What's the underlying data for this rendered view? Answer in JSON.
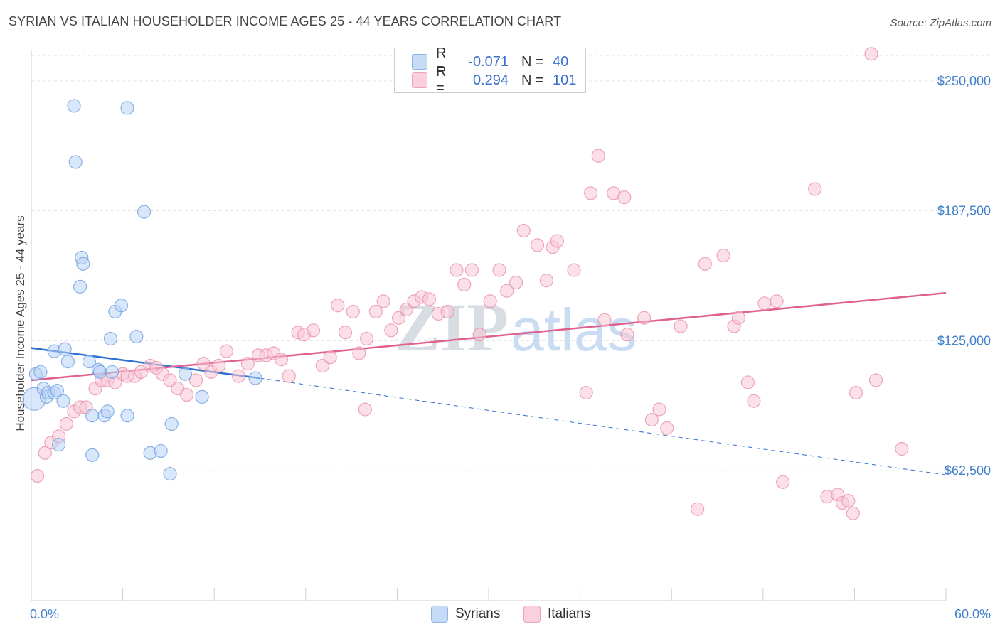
{
  "title": "SYRIAN VS ITALIAN HOUSEHOLDER INCOME AGES 25 - 44 YEARS CORRELATION CHART",
  "source": "Source: ZipAtlas.com",
  "watermark": {
    "zip": "ZIP",
    "atlas": "atlas"
  },
  "legend": {
    "rows": [
      {
        "r_label": "R =",
        "r_value": "-0.071",
        "n_label": "N =",
        "n_value": "40",
        "color": "#a9c8f0"
      },
      {
        "r_label": "R =",
        "r_value": "0.294",
        "n_label": "N =",
        "n_value": "101",
        "color": "#f5b8cc"
      }
    ]
  },
  "bottom_legend": [
    {
      "label": "Syrians",
      "color": "#b9d3f5"
    },
    {
      "label": "Italians",
      "color": "#f8c6d6"
    }
  ],
  "chart_data": {
    "type": "scatter",
    "title": "SYRIAN VS ITALIAN HOUSEHOLDER INCOME AGES 25 - 44 YEARS CORRELATION CHART",
    "xlabel": "",
    "ylabel": "Householder Income Ages 25 - 44 years",
    "xlim": [
      0,
      60
    ],
    "ylim": [
      0,
      265000
    ],
    "x_tick_labels": [
      "0.0%",
      "60.0%"
    ],
    "y_ticks": [
      62500,
      125000,
      187500,
      250000
    ],
    "y_tick_labels": [
      "$62,500",
      "$125,000",
      "$187,500",
      "$250,000"
    ],
    "grid": true,
    "colors": {
      "syrians": "#5b95dc",
      "italians": "#e8789e",
      "syrians_line": "#2f6fd0",
      "italians_line": "#e0608e"
    },
    "series": [
      {
        "name": "Syrians",
        "points": [
          [
            0.2,
            97000
          ],
          [
            0.3,
            109000
          ],
          [
            0.6,
            110000
          ],
          [
            0.8,
            102000
          ],
          [
            1.0,
            98000
          ],
          [
            1.1,
            100000
          ],
          [
            1.5,
            120000
          ],
          [
            1.5,
            100000
          ],
          [
            1.7,
            101000
          ],
          [
            1.8,
            75000
          ],
          [
            2.1,
            96000
          ],
          [
            2.2,
            121000
          ],
          [
            2.4,
            115000
          ],
          [
            2.8,
            238000
          ],
          [
            2.9,
            211000
          ],
          [
            3.2,
            151000
          ],
          [
            3.3,
            165000
          ],
          [
            3.4,
            162000
          ],
          [
            3.8,
            115000
          ],
          [
            4.0,
            89000
          ],
          [
            4.0,
            70000
          ],
          [
            4.4,
            111000
          ],
          [
            4.5,
            110000
          ],
          [
            4.8,
            89000
          ],
          [
            5.0,
            91000
          ],
          [
            5.2,
            126000
          ],
          [
            5.3,
            110000
          ],
          [
            5.5,
            139000
          ],
          [
            5.9,
            142000
          ],
          [
            6.3,
            237000
          ],
          [
            6.3,
            89000
          ],
          [
            6.9,
            127000
          ],
          [
            7.4,
            187000
          ],
          [
            7.8,
            71000
          ],
          [
            8.5,
            72000
          ],
          [
            9.1,
            61000
          ],
          [
            9.2,
            85000
          ],
          [
            10.1,
            109000
          ],
          [
            11.2,
            98000
          ],
          [
            14.7,
            107000
          ]
        ],
        "trend": {
          "x": [
            0,
            15,
            60
          ],
          "y": [
            121500,
            107000,
            60500
          ],
          "solid_until": 15
        }
      },
      {
        "name": "Italians",
        "points": [
          [
            0.4,
            60000
          ],
          [
            0.9,
            71000
          ],
          [
            1.3,
            76000
          ],
          [
            1.8,
            79000
          ],
          [
            2.3,
            85000
          ],
          [
            2.8,
            91000
          ],
          [
            3.2,
            93000
          ],
          [
            3.6,
            93000
          ],
          [
            4.2,
            102000
          ],
          [
            4.6,
            106000
          ],
          [
            5.0,
            106000
          ],
          [
            5.5,
            105000
          ],
          [
            6.0,
            109000
          ],
          [
            6.3,
            108000
          ],
          [
            6.8,
            108000
          ],
          [
            7.2,
            110000
          ],
          [
            7.8,
            113000
          ],
          [
            8.2,
            112000
          ],
          [
            8.6,
            109000
          ],
          [
            9.1,
            106000
          ],
          [
            9.6,
            102000
          ],
          [
            10.2,
            99000
          ],
          [
            10.8,
            106000
          ],
          [
            11.3,
            114000
          ],
          [
            11.8,
            110000
          ],
          [
            12.3,
            113000
          ],
          [
            12.8,
            120000
          ],
          [
            13.6,
            108000
          ],
          [
            14.2,
            114000
          ],
          [
            14.9,
            118000
          ],
          [
            15.4,
            118000
          ],
          [
            15.9,
            119000
          ],
          [
            16.4,
            116000
          ],
          [
            16.9,
            108000
          ],
          [
            17.5,
            129000
          ],
          [
            17.9,
            128000
          ],
          [
            18.5,
            130000
          ],
          [
            19.1,
            113000
          ],
          [
            19.6,
            117000
          ],
          [
            20.1,
            142000
          ],
          [
            20.6,
            129000
          ],
          [
            21.1,
            139000
          ],
          [
            21.5,
            119000
          ],
          [
            22.0,
            126000
          ],
          [
            22.6,
            139000
          ],
          [
            23.1,
            144000
          ],
          [
            23.6,
            130000
          ],
          [
            24.1,
            136000
          ],
          [
            24.6,
            140000
          ],
          [
            25.1,
            144000
          ],
          [
            25.6,
            146000
          ],
          [
            26.1,
            145000
          ],
          [
            26.7,
            138000
          ],
          [
            27.3,
            139000
          ],
          [
            27.9,
            159000
          ],
          [
            28.4,
            152000
          ],
          [
            28.9,
            159000
          ],
          [
            29.4,
            128000
          ],
          [
            30.1,
            144000
          ],
          [
            30.7,
            159000
          ],
          [
            31.2,
            149000
          ],
          [
            31.8,
            153000
          ],
          [
            32.3,
            178000
          ],
          [
            33.2,
            171000
          ],
          [
            33.8,
            154000
          ],
          [
            34.2,
            170000
          ],
          [
            34.5,
            173000
          ],
          [
            35.6,
            159000
          ],
          [
            36.7,
            196000
          ],
          [
            37.2,
            214000
          ],
          [
            37.6,
            135000
          ],
          [
            38.2,
            196000
          ],
          [
            38.9,
            194000
          ],
          [
            39.1,
            128000
          ],
          [
            40.2,
            136000
          ],
          [
            40.7,
            87000
          ],
          [
            41.2,
            92000
          ],
          [
            41.7,
            83000
          ],
          [
            42.6,
            132000
          ],
          [
            43.7,
            44000
          ],
          [
            44.2,
            162000
          ],
          [
            45.4,
            166000
          ],
          [
            46.1,
            132000
          ],
          [
            46.4,
            136000
          ],
          [
            47.0,
            105000
          ],
          [
            48.1,
            143000
          ],
          [
            48.9,
            144000
          ],
          [
            49.3,
            57000
          ],
          [
            51.4,
            198000
          ],
          [
            52.2,
            50000
          ],
          [
            52.9,
            51000
          ],
          [
            53.2,
            47000
          ],
          [
            53.9,
            42000
          ],
          [
            53.6,
            48000
          ],
          [
            54.1,
            100000
          ],
          [
            55.1,
            263000
          ],
          [
            55.4,
            106000
          ],
          [
            57.1,
            73000
          ],
          [
            47.4,
            96000
          ],
          [
            36.4,
            100000
          ],
          [
            21.9,
            92000
          ]
        ],
        "trend": {
          "x": [
            0,
            60
          ],
          "y": [
            106000,
            148000
          ]
        }
      }
    ]
  }
}
